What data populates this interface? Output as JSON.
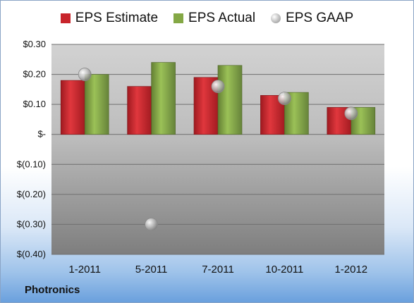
{
  "legend": {
    "estimate": "EPS Estimate",
    "actual": "EPS Actual",
    "gaap": "EPS GAAP"
  },
  "company": "Photronics",
  "colors": {
    "estimate": "#c8242b",
    "actual": "#84a845",
    "gaap": "#a8a8a8"
  },
  "chart_data": {
    "type": "bar",
    "categories": [
      "1-2011",
      "5-2011",
      "7-2011",
      "10-2011",
      "1-2012"
    ],
    "series": [
      {
        "name": "EPS Estimate",
        "values": [
          0.18,
          0.16,
          0.19,
          0.13,
          0.09
        ]
      },
      {
        "name": "EPS Actual",
        "values": [
          0.2,
          0.24,
          0.23,
          0.14,
          0.09
        ]
      },
      {
        "name": "EPS GAAP",
        "type": "scatter",
        "values": [
          0.2,
          -0.3,
          0.16,
          0.12,
          0.07
        ]
      }
    ],
    "ylim": [
      -0.4,
      0.3
    ],
    "yticks": [
      0.3,
      0.2,
      0.1,
      0.0,
      -0.1,
      -0.2,
      -0.3,
      -0.4
    ],
    "ytick_labels": [
      "$0.30",
      "$0.20",
      "$0.10",
      "$-",
      "$(0.10)",
      "$(0.20)",
      "$(0.30)",
      "$(0.40)"
    ],
    "grid": true,
    "legend_position": "top"
  }
}
